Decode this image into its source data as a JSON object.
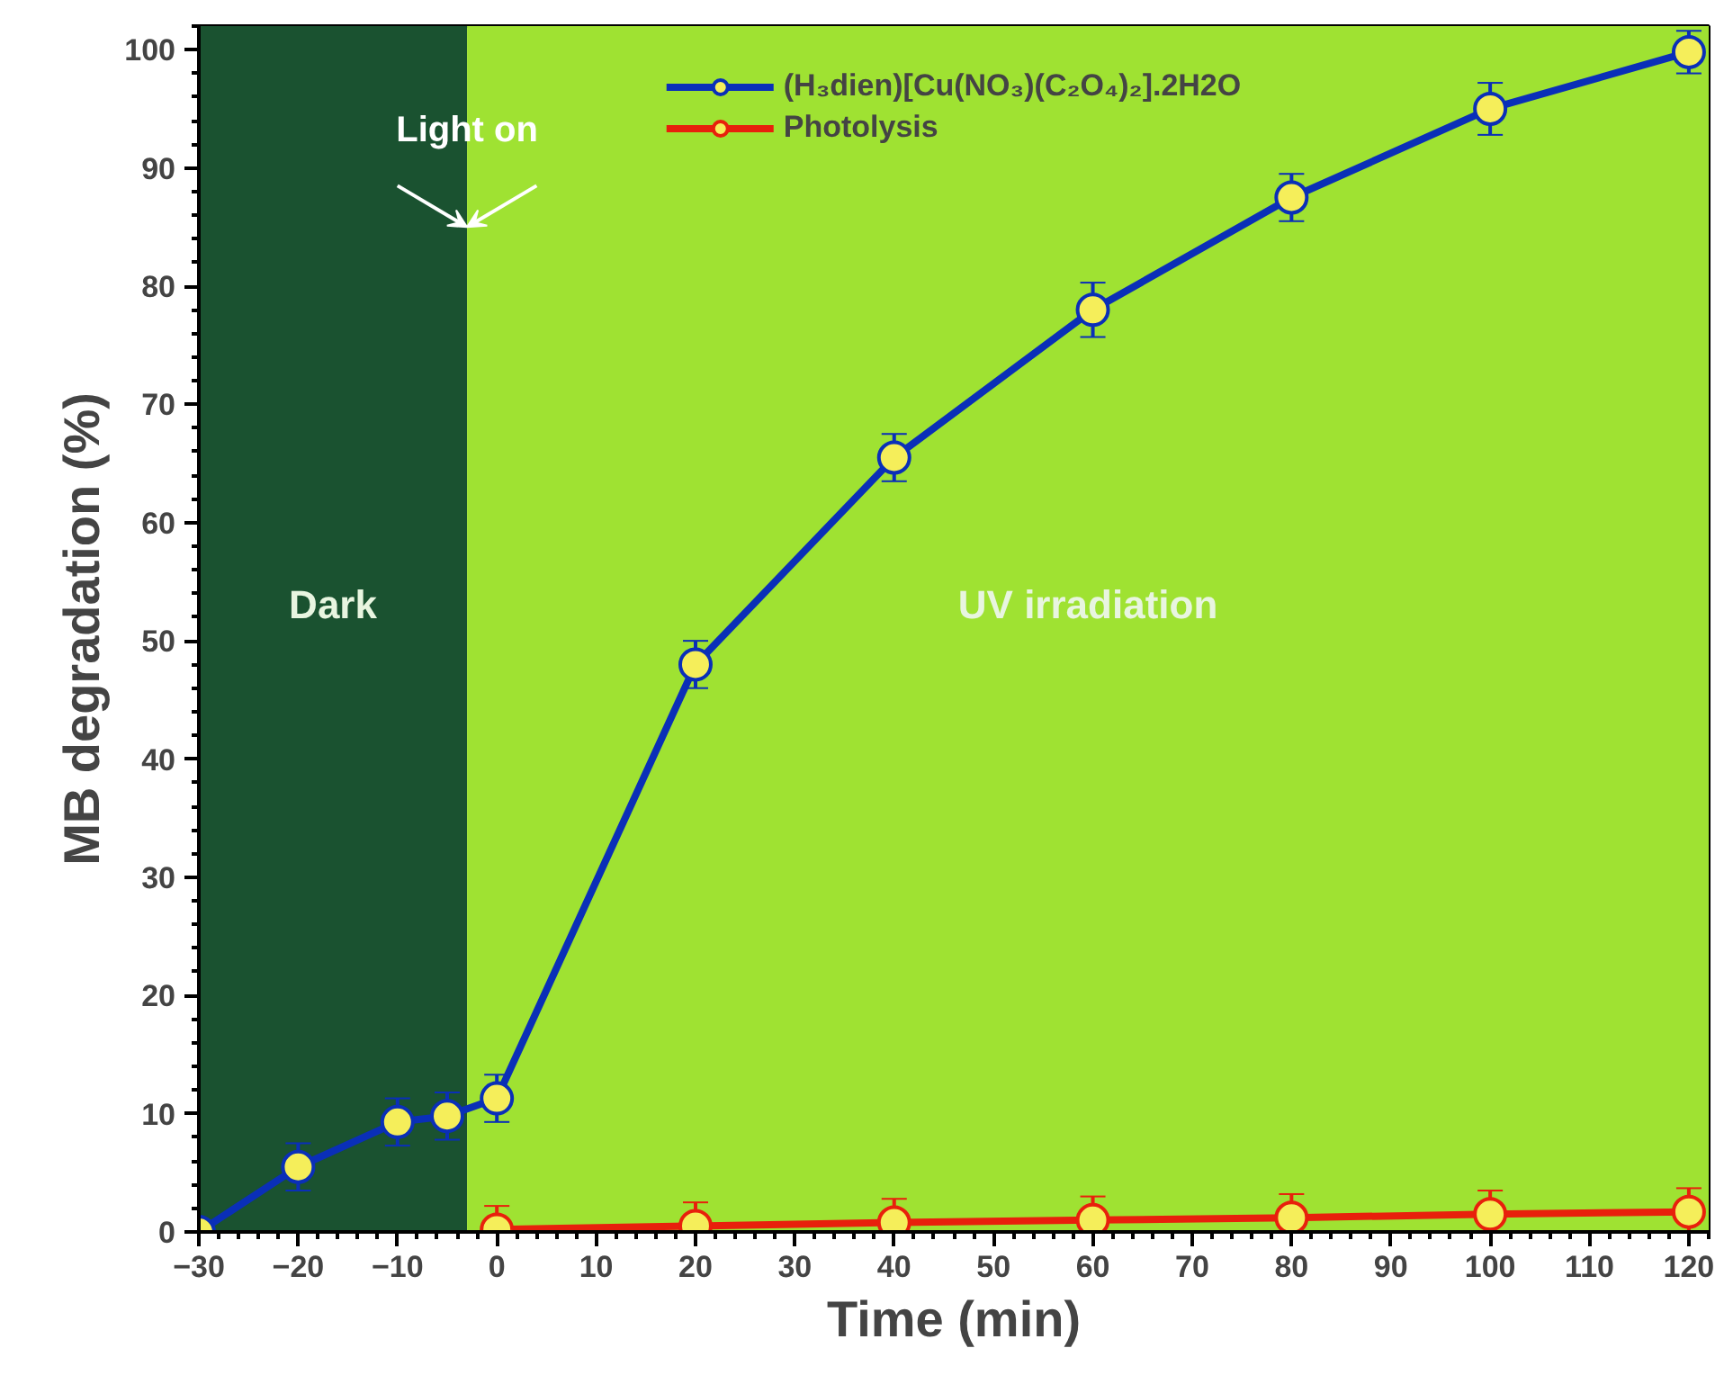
{
  "chart_data": {
    "type": "line",
    "xlabel": "Time (min)",
    "ylabel": "MB degradation (%)",
    "xlim": [
      -30,
      122
    ],
    "ylim": [
      0,
      102
    ],
    "xticks": [
      -30,
      -20,
      -10,
      0,
      10,
      20,
      30,
      40,
      50,
      60,
      70,
      80,
      90,
      100,
      110,
      120
    ],
    "yticks": [
      0,
      10,
      20,
      30,
      40,
      50,
      60,
      70,
      80,
      90,
      100
    ],
    "legend": "top",
    "marker": "circle",
    "line_style": "solid",
    "bands": [
      {
        "axis": "x",
        "from": -30,
        "to": -3,
        "label": "Dark",
        "color": "#1a5230"
      },
      {
        "axis": "x",
        "from": -3,
        "to": 122,
        "label": "UV irradiation",
        "color": "#9fe232"
      }
    ],
    "annotations": [
      {
        "text": "Light on",
        "x": -3,
        "y": 85
      }
    ],
    "series": [
      {
        "name": "(H₃dien)[Cu(NO₃)(C₂O₄)₂].2H2O",
        "color": "#0a2fb8",
        "x": [
          -30,
          -20,
          -10,
          -5,
          0,
          20,
          40,
          60,
          80,
          100,
          120
        ],
        "values": [
          0,
          5.5,
          9.3,
          9.8,
          11.3,
          48,
          65.5,
          78,
          87.5,
          95,
          99.8
        ],
        "errors": [
          null,
          2,
          2,
          2,
          2,
          2,
          2,
          2.3,
          2,
          2.2,
          1.8
        ]
      },
      {
        "name": "Photolysis",
        "color": "#e8200c",
        "x": [
          0,
          20,
          40,
          60,
          80,
          100,
          120
        ],
        "values": [
          0.2,
          0.5,
          0.8,
          1.0,
          1.2,
          1.5,
          1.7
        ],
        "errors": [
          2,
          2,
          2,
          2,
          2,
          2,
          2
        ]
      }
    ]
  }
}
